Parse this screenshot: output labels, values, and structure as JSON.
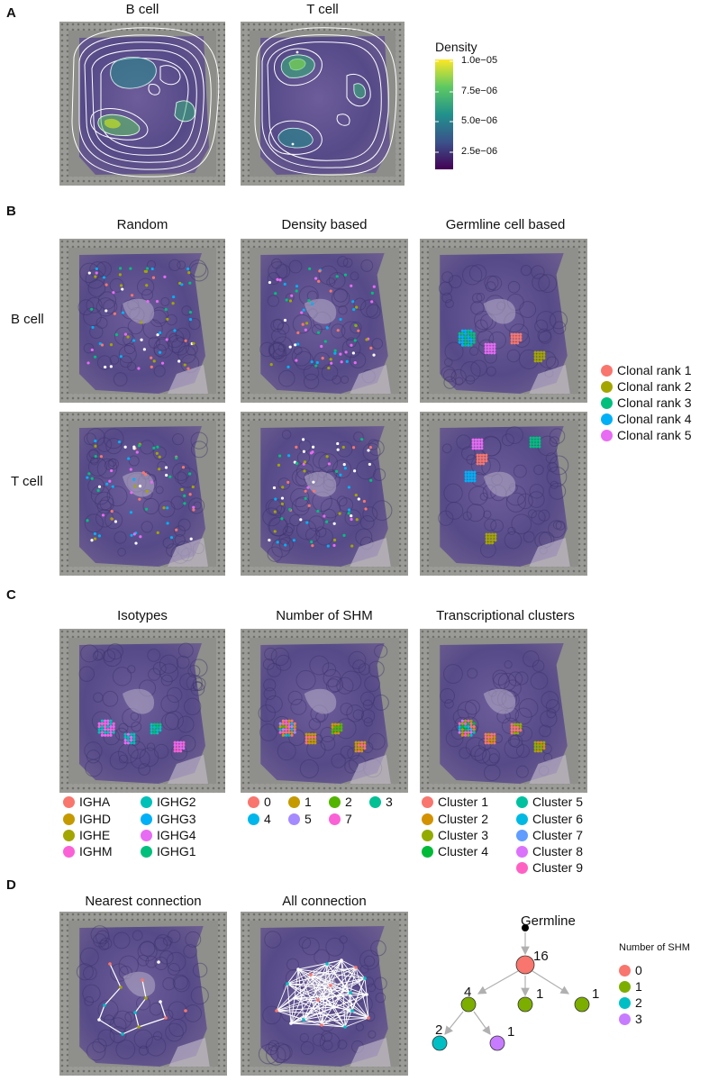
{
  "panels": {
    "A": {
      "letter": "A",
      "titles": [
        "B cell",
        "T cell"
      ],
      "colorbar": {
        "title": "Density",
        "ticks": [
          "1.0e−05",
          "7.5e−06",
          "5.0e−06",
          "2.5e−06"
        ]
      }
    },
    "B": {
      "letter": "B",
      "columns": [
        "Random",
        "Density based",
        "Germline cell based"
      ],
      "rows": [
        "B cell",
        "T cell"
      ],
      "legend": [
        {
          "label": "Clonal rank 1",
          "color": "#F8766D"
        },
        {
          "label": "Clonal rank 2",
          "color": "#A3A500"
        },
        {
          "label": "Clonal rank 3",
          "color": "#00BF7D"
        },
        {
          "label": "Clonal rank 4",
          "color": "#00B0F6"
        },
        {
          "label": "Clonal rank 5",
          "color": "#E76BF3"
        }
      ]
    },
    "C": {
      "letter": "C",
      "columns": [
        "Isotypes",
        "Number of SHM",
        "Transcriptional clusters"
      ],
      "isotype_legend": [
        {
          "label": "IGHA",
          "color": "#F8766D"
        },
        {
          "label": "IGHD",
          "color": "#C49A00"
        },
        {
          "label": "IGHE",
          "color": "#A3A500"
        },
        {
          "label": "IGHM",
          "color": "#FB61D7"
        },
        {
          "label": "IGHG2",
          "color": "#00C0B8"
        },
        {
          "label": "IGHG3",
          "color": "#00B0F6"
        },
        {
          "label": "IGHG4",
          "color": "#E76BF3"
        },
        {
          "label": "IGHG1",
          "color": "#00BF7D"
        }
      ],
      "shm_legend": [
        {
          "label": "0",
          "color": "#F8766D"
        },
        {
          "label": "1",
          "color": "#C49A00"
        },
        {
          "label": "2",
          "color": "#53B400"
        },
        {
          "label": "3",
          "color": "#00C094"
        },
        {
          "label": "4",
          "color": "#00B6EB"
        },
        {
          "label": "5",
          "color": "#A58AFF"
        },
        {
          "label": "7",
          "color": "#FB61D7"
        }
      ],
      "cluster_legend": [
        {
          "label": "Cluster 1",
          "color": "#F8766D"
        },
        {
          "label": "Cluster 2",
          "color": "#D39200"
        },
        {
          "label": "Cluster 3",
          "color": "#93AA00"
        },
        {
          "label": "Cluster 4",
          "color": "#00BA38"
        },
        {
          "label": "Cluster 5",
          "color": "#00C19F"
        },
        {
          "label": "Cluster 6",
          "color": "#00B9E3"
        },
        {
          "label": "Cluster 7",
          "color": "#619CFF"
        },
        {
          "label": "Cluster 8",
          "color": "#DB72FB"
        },
        {
          "label": "Cluster 9",
          "color": "#FF61C3"
        }
      ]
    },
    "D": {
      "letter": "D",
      "columns": [
        "Nearest connection",
        "All connection"
      ],
      "tree": {
        "root_label": "Germline",
        "node_labels": [
          "16",
          "4",
          "1",
          "1",
          "2",
          "1"
        ]
      },
      "shm_legend": {
        "title": "Number of SHM",
        "items": [
          {
            "label": "0",
            "color": "#F8766D"
          },
          {
            "label": "1",
            "color": "#7CAE00"
          },
          {
            "label": "2",
            "color": "#00BFC4"
          },
          {
            "label": "3",
            "color": "#C77CFF"
          }
        ]
      }
    }
  }
}
